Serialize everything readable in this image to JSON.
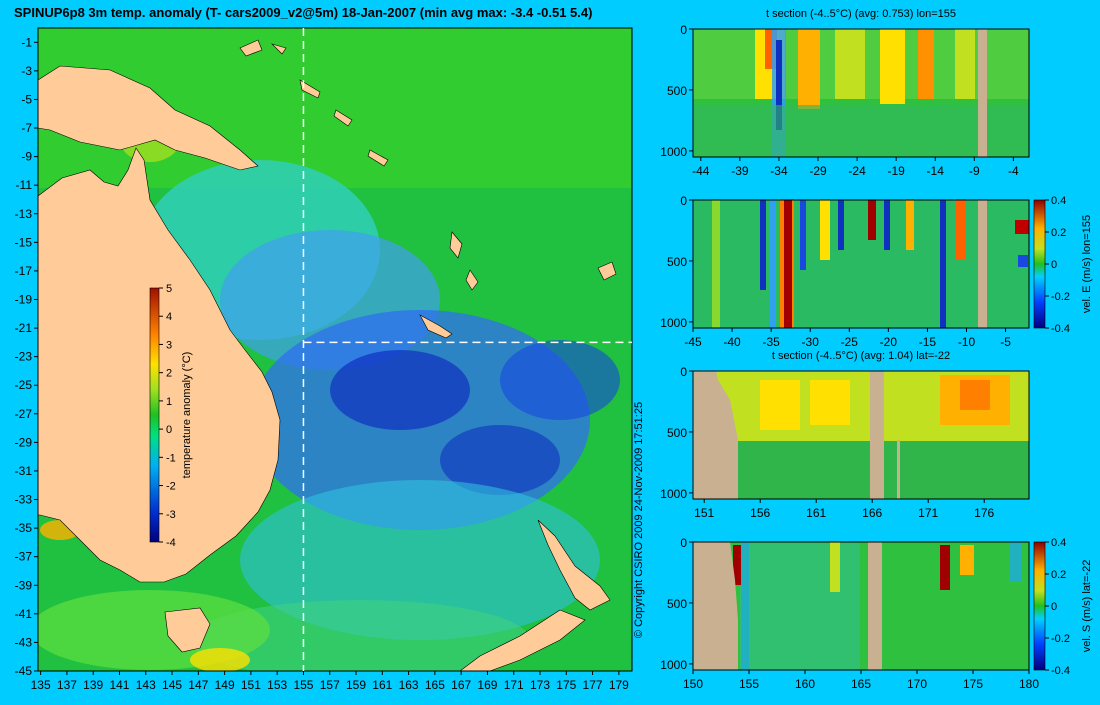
{
  "title": "SPINUP6p8 3m temp. anomaly (T- cars2009_v2@5m) 18-Jan-2007 (min avg max: -3.4 -0.51 5.4)",
  "copyright": "© Copyright CSIRO 2009   24-Nov-2009 17:51:25",
  "colors": {
    "background": "#00ccff",
    "land_map": "#ffcc99",
    "land_section": "#c8b090",
    "guide_line": "#ffffff"
  },
  "chart_data": [
    {
      "type": "heatmap",
      "name": "map",
      "x_ticks": [
        135,
        137,
        139,
        141,
        143,
        145,
        147,
        149,
        151,
        153,
        155,
        157,
        159,
        161,
        163,
        165,
        167,
        169,
        171,
        173,
        175,
        177,
        179
      ],
      "y_ticks": [
        -1,
        -3,
        -5,
        -7,
        -9,
        -11,
        -13,
        -15,
        -17,
        -19,
        -21,
        -23,
        -25,
        -27,
        -29,
        -31,
        -33,
        -35,
        -37,
        -39,
        -41,
        -43,
        -45
      ],
      "xlim": [
        134.8,
        180
      ],
      "ylim": [
        -45,
        0
      ],
      "guide_lon": 155,
      "guide_lat": -22,
      "colorbar": {
        "label": "temperature anomaly (°C)",
        "ticks": [
          5,
          4,
          3,
          2,
          1,
          0,
          -1,
          -2,
          -3,
          -4
        ],
        "range": [
          -4,
          5
        ]
      }
    },
    {
      "type": "heatmap",
      "name": "section-lon",
      "title": "t section (-4..5°C) (avg: 0.753) lon=155",
      "x_ticks": [
        -44,
        -39,
        -34,
        -29,
        -24,
        -19,
        -14,
        -9,
        -4
      ],
      "xlim": [
        -45,
        -2
      ],
      "y_ticks": [
        0,
        500,
        1000
      ],
      "ylim": [
        1050,
        0
      ]
    },
    {
      "type": "heatmap",
      "name": "velocity-east",
      "x_ticks": [
        -45,
        -40,
        -35,
        -30,
        -25,
        -20,
        -15,
        -10,
        -5
      ],
      "xlim": [
        -45,
        -2
      ],
      "y_ticks": [
        0,
        500,
        1000
      ],
      "ylim": [
        1050,
        0
      ],
      "colorbar": {
        "label": "vel. E (m/s) lon=155",
        "ticks": [
          "0.4",
          "0.2",
          "0",
          "-0.2",
          "-0.4"
        ],
        "range": [
          -0.4,
          0.4
        ]
      }
    },
    {
      "type": "heatmap",
      "name": "section-lat",
      "title": "t section (-4..5°C) (avg: 1.04) lat=-22",
      "x_ticks": [
        151,
        156,
        161,
        166,
        171,
        176
      ],
      "xlim": [
        150,
        180
      ],
      "y_ticks": [
        0,
        500,
        1000
      ],
      "ylim": [
        1050,
        0
      ]
    },
    {
      "type": "heatmap",
      "name": "velocity-south",
      "x_ticks": [
        150,
        155,
        160,
        165,
        170,
        175,
        180
      ],
      "xlim": [
        150,
        180
      ],
      "y_ticks": [
        0,
        500,
        1000
      ],
      "ylim": [
        1050,
        0
      ],
      "colorbar": {
        "label": "vel. S (m/s) lat=-22",
        "ticks": [
          "0.4",
          "0.2",
          "0",
          "-0.2",
          "-0.4"
        ],
        "range": [
          -0.4,
          0.4
        ]
      }
    }
  ]
}
